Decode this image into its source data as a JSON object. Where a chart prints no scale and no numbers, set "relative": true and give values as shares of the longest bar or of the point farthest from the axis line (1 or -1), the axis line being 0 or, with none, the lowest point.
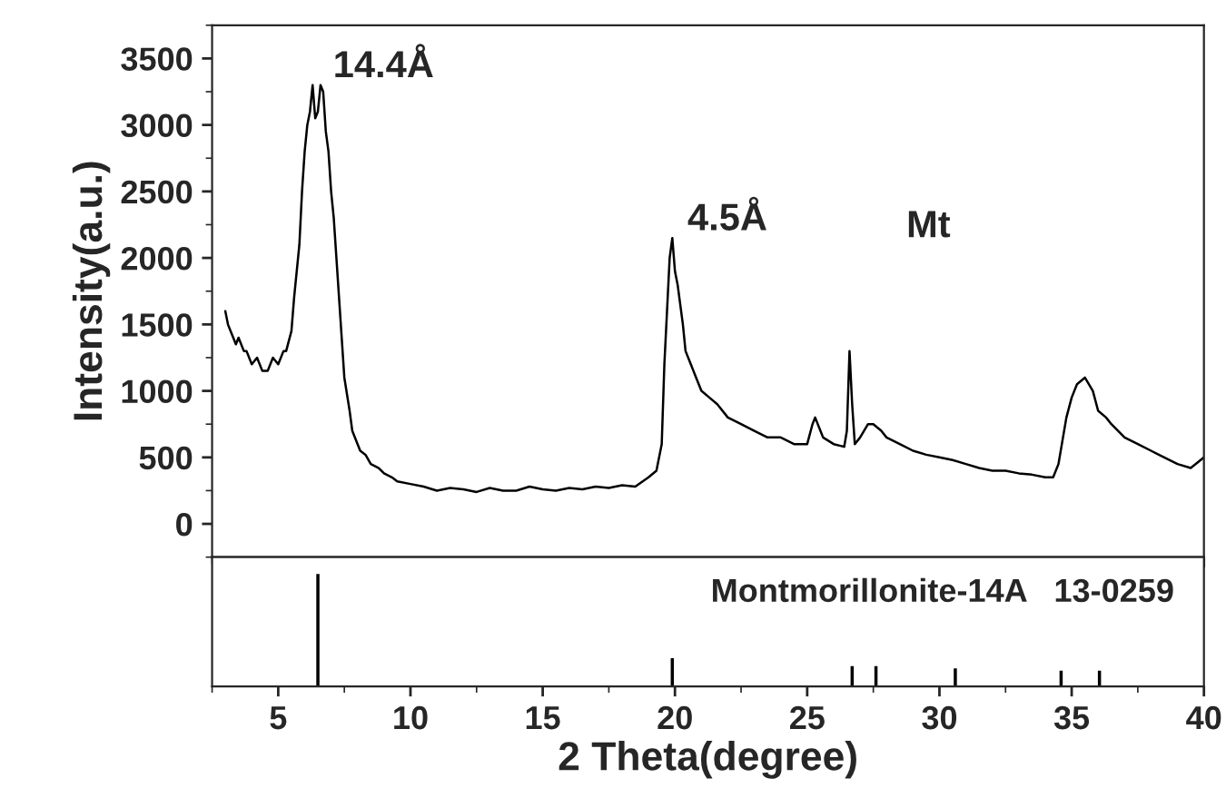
{
  "chart_data": [
    {
      "type": "line",
      "ylabel": "Intensity(a.u.)",
      "xlim": [
        2.5,
        40
      ],
      "ylim": [
        -250,
        3750
      ],
      "xticks": [
        5,
        10,
        15,
        20,
        25,
        30,
        35,
        40
      ],
      "yticks": [
        0,
        500,
        1000,
        1500,
        2000,
        2500,
        3000,
        3500
      ],
      "tick_labels": "y",
      "grid": false,
      "legend": false,
      "annotations": [
        {
          "text": "14.4Å",
          "x": 6.5,
          "y": 3300
        },
        {
          "text": "4.5Å",
          "x": 19.9,
          "y": 2150
        },
        "Mt"
      ],
      "series": [
        {
          "color": "#000000",
          "x": [
            3.0,
            3.1,
            3.2,
            3.4,
            3.5,
            3.7,
            3.8,
            4.0,
            4.2,
            4.4,
            4.6,
            4.8,
            5.0,
            5.2,
            5.3,
            5.5,
            5.6,
            5.8,
            5.9,
            6.0,
            6.1,
            6.2,
            6.3,
            6.4,
            6.5,
            6.6,
            6.7,
            6.8,
            6.9,
            7.0,
            7.1,
            7.2,
            7.3,
            7.4,
            7.5,
            7.7,
            7.8,
            8.0,
            8.1,
            8.3,
            8.5,
            8.8,
            9.0,
            9.3,
            9.5,
            10.0,
            10.5,
            11.0,
            11.5,
            12.0,
            12.5,
            13.0,
            13.5,
            14.0,
            14.5,
            15.0,
            15.5,
            16.0,
            16.5,
            17.0,
            17.5,
            18.0,
            18.5,
            19.0,
            19.3,
            19.5,
            19.6,
            19.7,
            19.8,
            19.9,
            20.0,
            20.1,
            20.3,
            20.4,
            20.6,
            20.8,
            21.0,
            21.3,
            21.6,
            22.0,
            22.5,
            23.0,
            23.5,
            24.0,
            24.5,
            25.0,
            25.2,
            25.3,
            25.5,
            25.6,
            26.0,
            26.4,
            26.5,
            26.6,
            26.7,
            26.8,
            27.0,
            27.3,
            27.5,
            27.8,
            28.0,
            28.5,
            29.0,
            29.5,
            30.0,
            30.5,
            31.0,
            31.5,
            32.0,
            32.5,
            33.0,
            33.5,
            34.0,
            34.3,
            34.5,
            34.8,
            35.0,
            35.2,
            35.5,
            35.8,
            36.0,
            36.3,
            36.5,
            37.0,
            37.5,
            38.0,
            38.5,
            39.0,
            39.5,
            40.0
          ],
          "values": [
            1600,
            1500,
            1450,
            1350,
            1400,
            1300,
            1300,
            1200,
            1250,
            1150,
            1150,
            1250,
            1200,
            1300,
            1300,
            1450,
            1700,
            2100,
            2500,
            2800,
            3000,
            3100,
            3300,
            3050,
            3100,
            3300,
            3250,
            2950,
            2800,
            2500,
            2300,
            2000,
            1700,
            1400,
            1100,
            850,
            700,
            600,
            550,
            520,
            450,
            420,
            380,
            350,
            320,
            300,
            280,
            250,
            270,
            260,
            240,
            270,
            250,
            250,
            280,
            260,
            250,
            270,
            260,
            280,
            270,
            290,
            280,
            350,
            400,
            600,
            1200,
            1600,
            2000,
            2150,
            1900,
            1800,
            1500,
            1300,
            1200,
            1100,
            1000,
            950,
            900,
            800,
            750,
            700,
            650,
            650,
            600,
            600,
            750,
            800,
            700,
            650,
            600,
            580,
            700,
            1300,
            900,
            600,
            650,
            750,
            750,
            700,
            650,
            600,
            550,
            520,
            500,
            480,
            450,
            420,
            400,
            400,
            380,
            370,
            350,
            350,
            450,
            800,
            950,
            1050,
            1100,
            1000,
            850,
            800,
            750,
            650,
            600,
            550,
            500,
            450,
            420,
            500
          ]
        }
      ]
    },
    {
      "type": "bar",
      "relative": true,
      "xlabel": "2 Theta(degree)",
      "xlim": [
        2.5,
        40
      ],
      "xticks": [
        5,
        10,
        15,
        20,
        25,
        30,
        35,
        40
      ],
      "tick_labels": "x",
      "annotations": [
        "Montmorillonite-14A   13-0259"
      ],
      "x": [
        6.5,
        19.9,
        26.7,
        27.6,
        30.6,
        34.6,
        36.05
      ],
      "series": [
        {
          "color": "#000000",
          "values": [
            1,
            0.25,
            0.18,
            0.18,
            0.16,
            0.14,
            0.14
          ]
        }
      ]
    }
  ]
}
